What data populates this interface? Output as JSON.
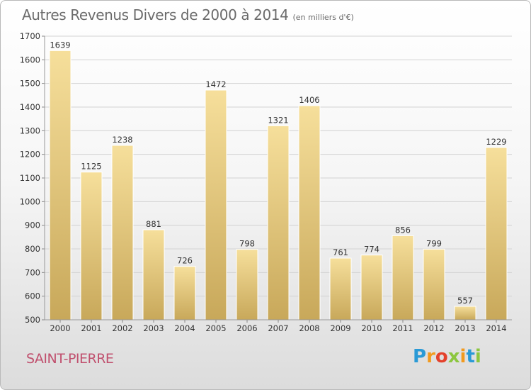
{
  "header": {
    "title": "Autres Revenus Divers de 2000 à 2014",
    "subtitle": "(en milliers d'€)"
  },
  "footer": {
    "commune": "SAINT-PIERRE",
    "brand_letters": [
      "P",
      "r",
      "o",
      "x",
      "i",
      "t",
      "i"
    ],
    "brand_colors": [
      "#2a9ad6",
      "#f29a1e",
      "#e4412b",
      "#8cc63f",
      "#f29a1e",
      "#2a9ad6",
      "#8cc63f"
    ]
  },
  "colors": {
    "bar_light": "#f6df9b",
    "bar_dark": "#c8a85a",
    "grid": "#d2d2d2",
    "axis_text": "#333333"
  },
  "chart_data": {
    "type": "bar",
    "title": "Autres Revenus Divers de 2000 à 2014",
    "subtitle": "(en milliers d'€)",
    "categories": [
      "2000",
      "2001",
      "2002",
      "2003",
      "2004",
      "2005",
      "2006",
      "2007",
      "2008",
      "2009",
      "2010",
      "2011",
      "2012",
      "2013",
      "2014"
    ],
    "values": [
      1639,
      1125,
      1238,
      881,
      726,
      1472,
      798,
      1321,
      1406,
      761,
      774,
      856,
      799,
      557,
      1229
    ],
    "ylim": [
      500,
      1700
    ],
    "yticks": [
      500,
      600,
      700,
      800,
      900,
      1000,
      1100,
      1200,
      1300,
      1400,
      1500,
      1600,
      1700
    ],
    "grid": true,
    "data_labels": true
  }
}
